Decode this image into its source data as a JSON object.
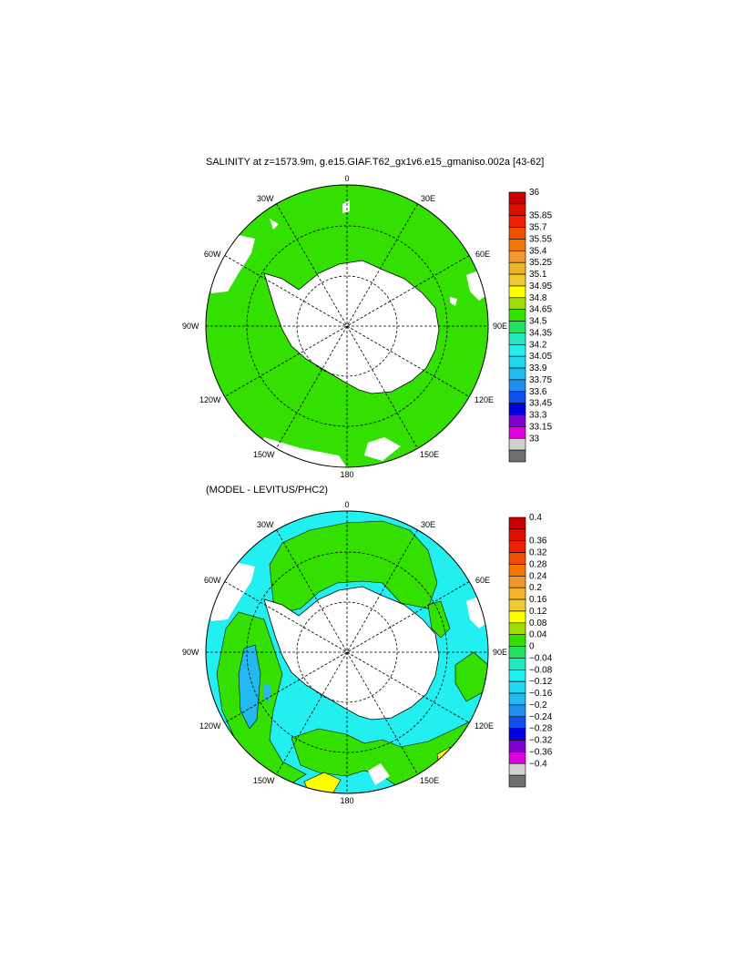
{
  "panel_top": {
    "title": "SALINITY at z=1573.9m, g.e15.GIAF.T62_gx1v6.e15_gmaniso.002a [43-62]",
    "lon_labels": {
      "l0": "0",
      "l30e": "30E",
      "l60e": "60E",
      "l90e": "90E",
      "l120e": "120E",
      "l150e": "150E",
      "l180": "180",
      "l150w": "150W",
      "l120w": "120W",
      "l90w": "90W",
      "l60w": "60W",
      "l30w": "30W"
    },
    "colorbar": {
      "colors": [
        "#c80000",
        "#dd1000",
        "#f02000",
        "#f05000",
        "#f07800",
        "#f09830",
        "#f0b428",
        "#f0c830",
        "#ffff00",
        "#a0dc00",
        "#33e000",
        "#22e060",
        "#22e8c0",
        "#22f0f0",
        "#22d8f0",
        "#22b8f0",
        "#2090f0",
        "#1050f0",
        "#0000e0",
        "#8000d0",
        "#e000e0",
        "#d0d0d0",
        "#707070"
      ],
      "labels": [
        "36",
        "35.85",
        "35.7",
        "35.55",
        "35.4",
        "35.25",
        "35.1",
        "34.95",
        "34.8",
        "34.65",
        "34.5",
        "34.35",
        "34.2",
        "34.05",
        "33.9",
        "33.75",
        "33.6",
        "33.45",
        "33.3",
        "33.15",
        "33"
      ]
    }
  },
  "panel_bottom": {
    "title": "(MODEL - LEVITUS/PHC2)",
    "lon_labels": {
      "l0": "0",
      "l30e": "30E",
      "l60e": "60E",
      "l90e": "90E",
      "l120e": "120E",
      "l150e": "150E",
      "l180": "180",
      "l150w": "150W",
      "l120w": "120W",
      "l90w": "90W",
      "l60w": "60W",
      "l30w": "30W"
    },
    "colorbar": {
      "colors": [
        "#c80000",
        "#dd1000",
        "#f02000",
        "#f05000",
        "#f07800",
        "#f09830",
        "#f0b428",
        "#f0c830",
        "#ffff00",
        "#a0dc00",
        "#33e000",
        "#22e060",
        "#22e8c0",
        "#22f0f0",
        "#22d8f0",
        "#22b8f0",
        "#2090f0",
        "#1050f0",
        "#0000e0",
        "#8000d0",
        "#e000e0",
        "#d0d0d0",
        "#707070"
      ],
      "labels": [
        "0.4",
        "0.36",
        "0.32",
        "0.28",
        "0.24",
        "0.2",
        "0.16",
        "0.12",
        "0.08",
        "0.04",
        "0",
        "−0.04",
        "−0.08",
        "−0.12",
        "−0.16",
        "−0.2",
        "−0.24",
        "−0.28",
        "−0.32",
        "−0.36",
        "−0.4"
      ]
    }
  },
  "palette": {
    "ocean_top": "#33e000",
    "land": "#ffffff",
    "cyan": "#22f0f0",
    "light_cyan": "#22e8c0",
    "mid_blue": "#22b8f0",
    "green": "#33e000",
    "yellow": "#ffff00"
  }
}
